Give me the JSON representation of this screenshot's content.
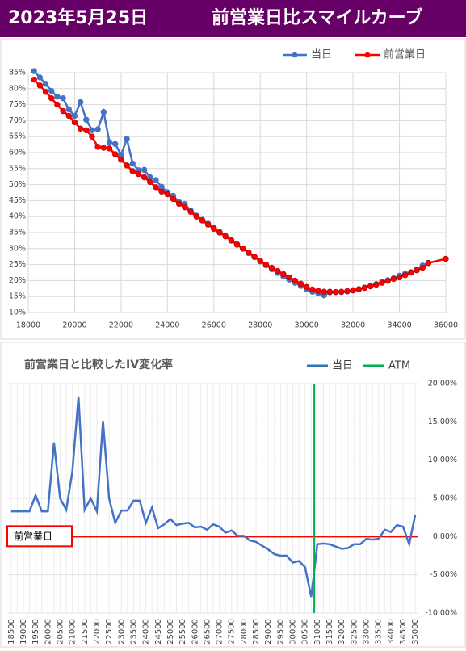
{
  "header": {
    "date": "2023年5月25日",
    "title": "前営業日比スマイルカーブ"
  },
  "chart_data": [
    {
      "type": "line",
      "x": [
        18250,
        18500,
        18750,
        19000,
        19250,
        19500,
        19750,
        20000,
        20250,
        20500,
        20750,
        21000,
        21250,
        21500,
        21750,
        22000,
        22250,
        22500,
        22750,
        23000,
        23250,
        23500,
        23750,
        24000,
        24250,
        24500,
        24750,
        25000,
        25250,
        25500,
        25750,
        26000,
        26250,
        26500,
        26750,
        27000,
        27250,
        27500,
        27750,
        28000,
        28250,
        28500,
        28750,
        29000,
        29250,
        29500,
        29750,
        30000,
        30250,
        30500,
        30750,
        31000,
        31250,
        31500,
        31750,
        32000,
        32250,
        32500,
        32750,
        33000,
        33250,
        33500,
        33750,
        34000,
        34250,
        34500,
        34750,
        35000,
        35250,
        36000
      ],
      "series": [
        {
          "name": "当日",
          "color": "#4472c4",
          "values": [
            85.5,
            83.5,
            81.5,
            79.3,
            77.5,
            77,
            73.5,
            71.5,
            75.8,
            70.3,
            67,
            67.3,
            72.7,
            63.3,
            62.7,
            59.3,
            64.3,
            56.6,
            54.5,
            54.6,
            52.3,
            51.4,
            49.3,
            47.6,
            46.5,
            44.5,
            43.9,
            41.9,
            40.3,
            39,
            37.8,
            36.5,
            35.2,
            34,
            32.7,
            31.4,
            30,
            28.6,
            27.3,
            26,
            24.8,
            23.5,
            22.4,
            21.3,
            20.3,
            19.3,
            18.3,
            17.3,
            16.5,
            16,
            15.4,
            16.3,
            16.4,
            16.4,
            16.6,
            16.9,
            17.3,
            17.8,
            18.3,
            18.9,
            19.5,
            20.1,
            20.7,
            21.5,
            22.2,
            22.6,
            23.5,
            24.7,
            25.5,
            null
          ]
        },
        {
          "name": "前営業日",
          "color": "#ff0000",
          "values": [
            82.8,
            81,
            79,
            77,
            75,
            73,
            71.5,
            69.5,
            67.5,
            67,
            65,
            61.8,
            61.5,
            61.3,
            59.5,
            57.8,
            56,
            54.2,
            53.3,
            52.3,
            50.8,
            49.2,
            47.8,
            47,
            45.5,
            44,
            42.9,
            41.5,
            40,
            38.8,
            37.5,
            36.2,
            35,
            33.8,
            32.5,
            31.2,
            30,
            28.8,
            27.5,
            26.2,
            25,
            24,
            23,
            22,
            21,
            20,
            19,
            18,
            17.2,
            16.8,
            16.5,
            16.5,
            16.4,
            16.5,
            16.7,
            17,
            17.3,
            17.7,
            18.2,
            18.7,
            19.3,
            19.9,
            20.5,
            21,
            21.7,
            22.5,
            23.2,
            24,
            25.5,
            26.8
          ]
        }
      ],
      "xlim": [
        18000,
        36000
      ],
      "xticks": [
        18000,
        20000,
        22000,
        24000,
        26000,
        28000,
        30000,
        32000,
        34000,
        36000
      ],
      "ylim": [
        10,
        85
      ],
      "yticks": [
        {
          "value": 10,
          "label": "10%"
        },
        {
          "value": 15,
          "label": "15%"
        },
        {
          "value": 20,
          "label": "20%"
        },
        {
          "value": 25,
          "label": "25%"
        },
        {
          "value": 30,
          "label": "30%"
        },
        {
          "value": 35,
          "label": "35%"
        },
        {
          "value": 40,
          "label": "40%"
        },
        {
          "value": 45,
          "label": "45%"
        },
        {
          "value": 50,
          "label": "50%"
        },
        {
          "value": 55,
          "label": "55%"
        },
        {
          "value": 60,
          "label": "60%"
        },
        {
          "value": 65,
          "label": "65%"
        },
        {
          "value": 70,
          "label": "70%"
        },
        {
          "value": 75,
          "label": "75%"
        },
        {
          "value": 80,
          "label": "80%"
        },
        {
          "value": 85,
          "label": "85%"
        }
      ],
      "grid": true,
      "legend": "top"
    },
    {
      "type": "line",
      "title": "前営業日と比較したIV変化率",
      "categories": [
        "18500",
        null,
        "19000",
        null,
        "19500",
        null,
        "20000",
        null,
        "20500",
        null,
        "21000",
        null,
        "21500",
        null,
        "22000",
        null,
        "22500",
        null,
        "23000",
        null,
        "23500",
        null,
        "24000",
        null,
        "24500",
        null,
        "25000",
        null,
        "25500",
        null,
        "26000",
        null,
        "26500",
        null,
        "27000",
        null,
        "27500",
        null,
        "28000",
        null,
        "28500",
        null,
        "29000",
        null,
        "29500",
        null,
        "30000",
        null,
        "30500",
        null,
        "31000",
        null,
        "31500",
        null,
        "32000",
        null,
        "32500",
        null,
        "33000",
        null,
        "33500",
        null,
        "34000",
        null,
        "34500",
        null,
        "35000"
      ],
      "series": [
        {
          "name": "当日",
          "color": "#4472c4",
          "legend_color": "#2e75b6",
          "values": [
            3.3,
            3.3,
            3.3,
            3.3,
            5.4,
            3.3,
            3.3,
            12.3,
            5,
            3.5,
            8.5,
            18.3,
            3.5,
            5,
            3.3,
            15.1,
            5,
            1.8,
            3.4,
            3.4,
            4.7,
            4.7,
            1.8,
            3.8,
            1.1,
            1.6,
            2.3,
            1.5,
            1.7,
            1.8,
            1.2,
            1.3,
            0.9,
            1.6,
            1.3,
            0.5,
            0.8,
            0.1,
            0.1,
            -0.5,
            -0.7,
            -1.2,
            -1.7,
            -2.3,
            -2.5,
            -2.5,
            -3.4,
            -3.2,
            -4,
            -7.9,
            -1,
            -0.9,
            -1,
            -1.3,
            -1.6,
            -1.5,
            -1,
            -1,
            -0.3,
            -0.4,
            -0.3,
            0.9,
            0.6,
            1.5,
            1.3,
            -1,
            2.9
          ]
        },
        {
          "name": "ATM",
          "color": "#00b050",
          "x": 30875
        }
      ],
      "reference": {
        "value": 0,
        "label": "前営業日",
        "color": "#ff0000"
      },
      "ylim": [
        -10,
        20
      ],
      "yticks": [
        {
          "value": -10,
          "label": "-10.00%"
        },
        {
          "value": -5,
          "label": "-5.00%"
        },
        {
          "value": 0,
          "label": "0.00%"
        },
        {
          "value": 5,
          "label": "5.00%"
        },
        {
          "value": 10,
          "label": "10.00%"
        },
        {
          "value": 15,
          "label": "15.00%"
        },
        {
          "value": 20,
          "label": "20.00%"
        }
      ],
      "y_axis_side": "right",
      "grid": true,
      "legend": "top-right"
    }
  ]
}
